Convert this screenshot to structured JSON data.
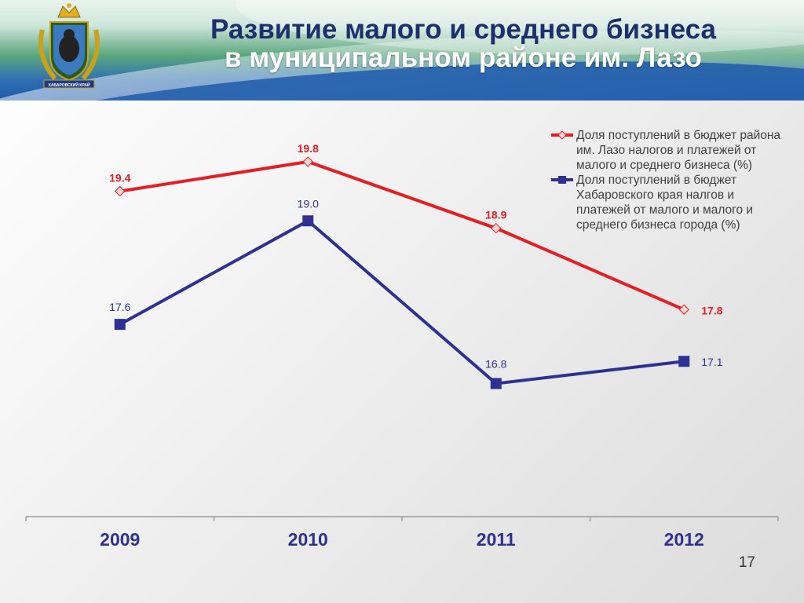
{
  "header": {
    "title_line1": "Развитие малого и среднего бизнеса",
    "title_line2": "в муниципальном районе им. Лазо",
    "emblem_text": "ХАБАРОВСКИЙ КРАЙ"
  },
  "slide_number": "17",
  "colors": {
    "series1": "#e31e24",
    "series2": "#2e3192",
    "title": "#1e2f6e"
  },
  "chart_data": {
    "type": "line",
    "categories": [
      "2009",
      "2010",
      "2011",
      "2012"
    ],
    "series": [
      {
        "name": "Доля поступлений в бюджет района им. Лазо налогов и платежей от малого и среднего бизнеса (%)",
        "values": [
          19.4,
          19.8,
          18.9,
          17.8
        ],
        "labels": [
          "19.4",
          "19.8",
          "18.9",
          "17.8"
        ],
        "marker": "diamond",
        "color": "#e31e24"
      },
      {
        "name": "Доля поступлений в бюджет Хабаровского края налгов и платежей от малого и малого и среднего бизнеса города (%)",
        "values": [
          17.6,
          19.0,
          16.8,
          17.1
        ],
        "labels": [
          "17.6",
          "19.0",
          "16.8",
          "17.1"
        ],
        "marker": "square",
        "color": "#2e3192"
      }
    ],
    "ylim": [
      15.0,
      20.5
    ],
    "legend_position": "top-right",
    "grid": false
  }
}
